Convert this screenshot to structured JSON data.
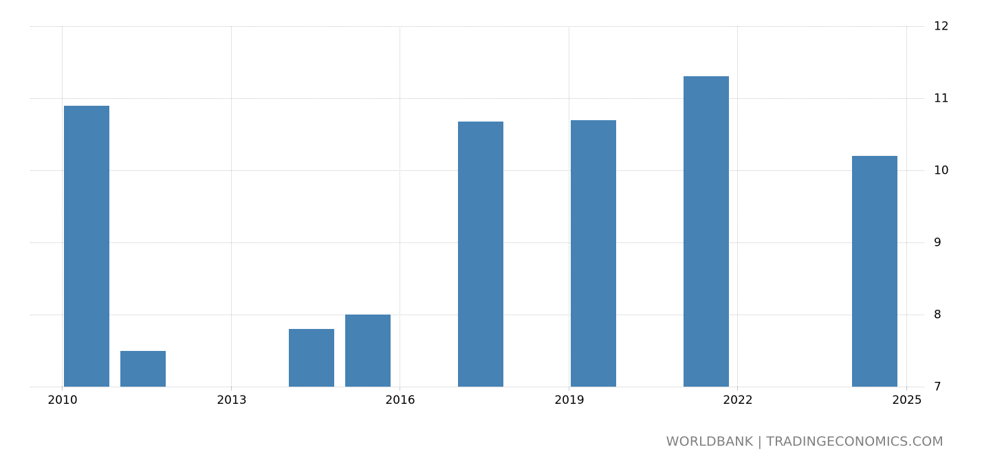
{
  "chart_data": {
    "type": "bar",
    "title": "",
    "xlabel": "",
    "ylabel": "",
    "categories": [
      "2010",
      "2011",
      "2014",
      "2015",
      "2017",
      "2019",
      "2021",
      "2024"
    ],
    "values": [
      10.9,
      7.5,
      7.8,
      8.0,
      10.68,
      10.7,
      11.3,
      10.2
    ],
    "ylim": [
      7,
      12
    ],
    "yticks": [
      "12",
      "11",
      "10",
      "9",
      "8",
      "7"
    ],
    "xticks": [
      "2010",
      "2013",
      "2016",
      "2019",
      "2022",
      "2025"
    ],
    "xlim": [
      2010,
      2025
    ],
    "grid": true,
    "y_axis_position": "right",
    "bar_color": "#4682b4",
    "legend": null
  },
  "footer": {
    "source_label": "WORLDBANK | TRADINGECONOMICS.COM"
  }
}
